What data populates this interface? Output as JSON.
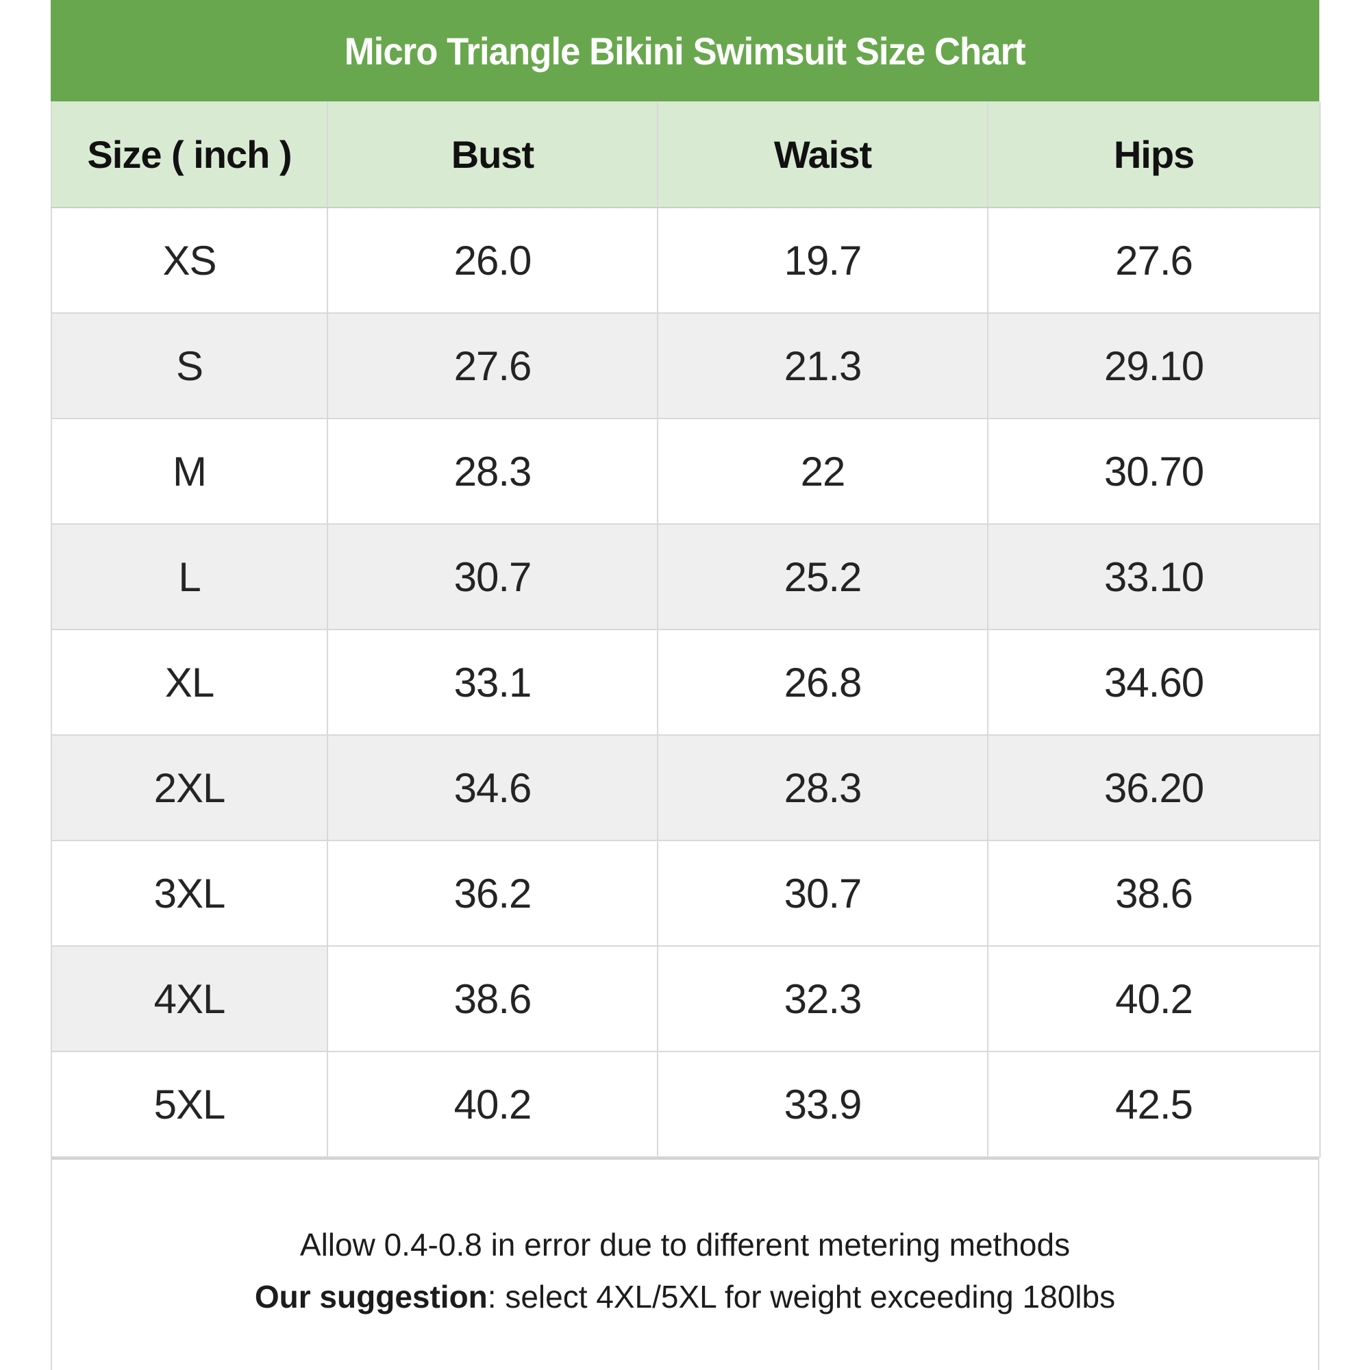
{
  "table": {
    "title": "Micro Triangle Bikini Swimsuit Size Chart",
    "columns": [
      "Size ( inch )",
      "Bust",
      "Waist",
      "Hips"
    ],
    "rows": [
      {
        "size": "XS",
        "bust": "26.0",
        "waist": "19.7",
        "hips": "27.6"
      },
      {
        "size": "S",
        "bust": "27.6",
        "waist": "21.3",
        "hips": "29.10"
      },
      {
        "size": "M",
        "bust": "28.3",
        "waist": "22",
        "hips": "30.70"
      },
      {
        "size": "L",
        "bust": "30.7",
        "waist": "25.2",
        "hips": "33.10"
      },
      {
        "size": "XL",
        "bust": "33.1",
        "waist": "26.8",
        "hips": "34.60"
      },
      {
        "size": "2XL",
        "bust": "34.6",
        "waist": "28.3",
        "hips": "36.20"
      },
      {
        "size": "3XL",
        "bust": "36.2",
        "waist": "30.7",
        "hips": "38.6"
      },
      {
        "size": "4XL",
        "bust": "38.6",
        "waist": "32.3",
        "hips": "40.2"
      },
      {
        "size": "5XL",
        "bust": "40.2",
        "waist": "33.9",
        "hips": "42.5"
      }
    ],
    "footer": {
      "line1": "Allow 0.4-0.8 in error due to different metering methods",
      "line2_bold": "Our suggestion",
      "line2_rest": ": select 4XL/5XL for weight exceeding 180lbs"
    },
    "colors": {
      "title_bar_green": "#69a74e",
      "header_row_green": "#d9ead3",
      "alt_row_gray": "#efefef",
      "border_gray": "#d9d9d9",
      "title_text": "#ffffff",
      "body_text": "#242424"
    }
  }
}
